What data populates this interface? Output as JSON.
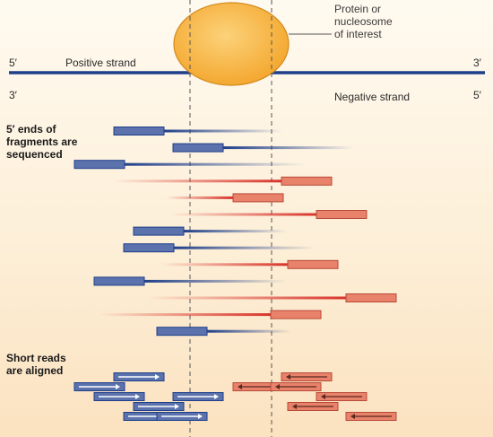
{
  "protein_label": "Protein or\nnucleosome\nof interest",
  "positive_strand": {
    "label": "Positive strand",
    "left_end": "5′",
    "right_end": "3′"
  },
  "negative_strand": {
    "label": "Negative strand",
    "left_end": "3′",
    "right_end": "5′"
  },
  "section_sequenced": "5′ ends of\nfragments are\nsequenced",
  "section_aligned": "Short reads\nare aligned",
  "colors": {
    "positive": "#1f3f8a",
    "positive_box": "#5b72ad",
    "negative": "#d8322a",
    "negative_box": "#e8826a",
    "protein": "#f8b848",
    "guide": "#555555"
  },
  "fragments": [
    {
      "strand": "positive",
      "read_start": 127,
      "read_end": 183,
      "tail_end": 315
    },
    {
      "strand": "positive",
      "read_start": 193,
      "read_end": 249,
      "tail_end": 395
    },
    {
      "strand": "positive",
      "read_start": 83,
      "read_end": 139,
      "tail_end": 340
    },
    {
      "strand": "negative",
      "tail_start": 125,
      "read_start": 314,
      "read_end": 370
    },
    {
      "strand": "negative",
      "tail_start": 185,
      "read_start": 260,
      "read_end": 316
    },
    {
      "strand": "negative",
      "tail_start": 190,
      "read_start": 353,
      "read_end": 409
    },
    {
      "strand": "positive",
      "read_start": 149,
      "read_end": 205,
      "tail_end": 320
    },
    {
      "strand": "positive",
      "read_start": 138,
      "read_end": 194,
      "tail_end": 352
    },
    {
      "strand": "negative",
      "tail_start": 180,
      "read_start": 321,
      "read_end": 377
    },
    {
      "strand": "positive",
      "read_start": 105,
      "read_end": 161,
      "tail_end": 320
    },
    {
      "strand": "negative",
      "tail_start": 165,
      "read_start": 386,
      "read_end": 442
    },
    {
      "strand": "negative",
      "tail_start": 110,
      "read_start": 302,
      "read_end": 358
    },
    {
      "strand": "positive",
      "read_start": 175,
      "read_end": 231,
      "tail_end": 325
    }
  ],
  "aligned_reads": [
    {
      "strand": "positive",
      "start": 127,
      "end": 183
    },
    {
      "strand": "positive",
      "start": 83,
      "end": 139
    },
    {
      "strand": "positive",
      "start": 193,
      "end": 249
    },
    {
      "strand": "positive",
      "start": 149,
      "end": 205
    },
    {
      "strand": "positive",
      "start": 138,
      "end": 194
    },
    {
      "strand": "positive",
      "start": 105,
      "end": 161
    },
    {
      "strand": "positive",
      "start": 175,
      "end": 231
    },
    {
      "strand": "negative",
      "start": 314,
      "end": 370
    },
    {
      "strand": "negative",
      "start": 260,
      "end": 316
    },
    {
      "strand": "negative",
      "start": 353,
      "end": 409
    },
    {
      "strand": "negative",
      "start": 321,
      "end": 377
    },
    {
      "strand": "negative",
      "start": 386,
      "end": 442
    },
    {
      "strand": "negative",
      "start": 302,
      "end": 358
    }
  ]
}
